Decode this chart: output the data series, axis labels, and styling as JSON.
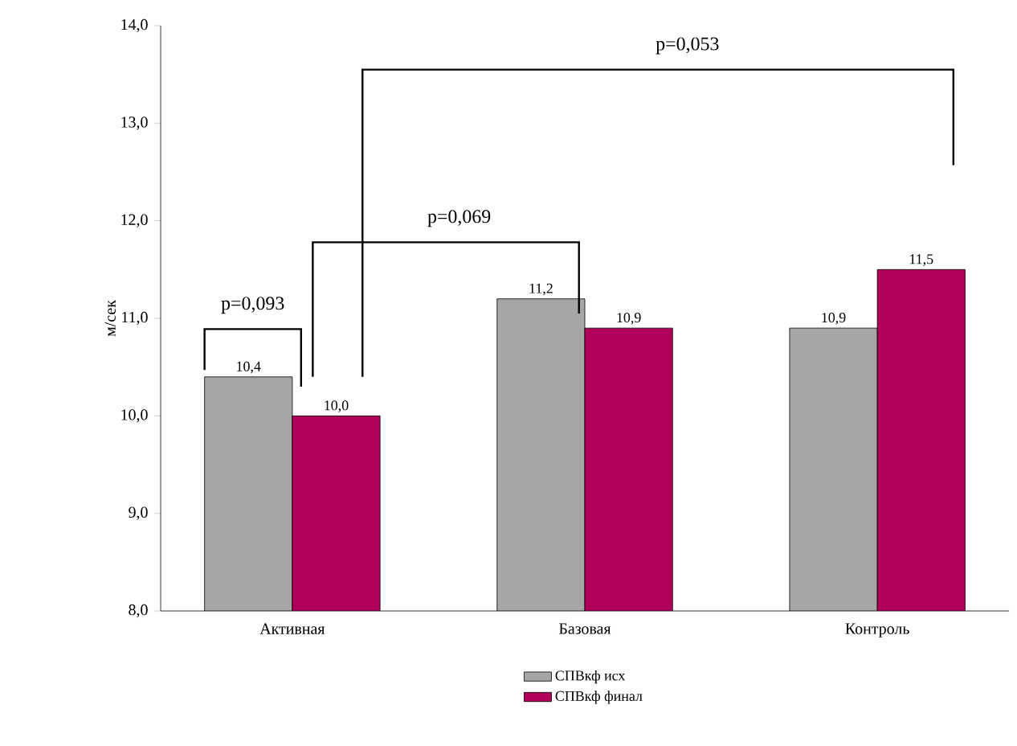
{
  "chart_data": {
    "type": "bar",
    "ylabel": "м/сек",
    "categories": [
      "Активная",
      "Базовая",
      "Контроль"
    ],
    "series": [
      {
        "name": "СПВкф исх",
        "color": "#a6a6a6",
        "values": [
          10.4,
          11.2,
          10.9
        ],
        "value_labels": [
          "10,4",
          "11,2",
          "10,9"
        ]
      },
      {
        "name": "СПВкф финал",
        "color": "#b0005a",
        "values": [
          10.0,
          10.9,
          11.5
        ],
        "value_labels": [
          "10,0",
          "10,9",
          "11,5"
        ]
      }
    ],
    "ylim": [
      8,
      14
    ],
    "yticks": [
      {
        "value": 8,
        "label": "8,0"
      },
      {
        "value": 9,
        "label": "9,0"
      },
      {
        "value": 10,
        "label": "10,0"
      },
      {
        "value": 11,
        "label": "11,0"
      },
      {
        "value": 12,
        "label": "12,0"
      },
      {
        "value": 13,
        "label": "13,0"
      },
      {
        "value": 14,
        "label": "14,0"
      }
    ],
    "annotations": [
      "p=0,093",
      "p=0,069",
      "p=0,053"
    ],
    "legend": "bottom",
    "grid": false
  }
}
